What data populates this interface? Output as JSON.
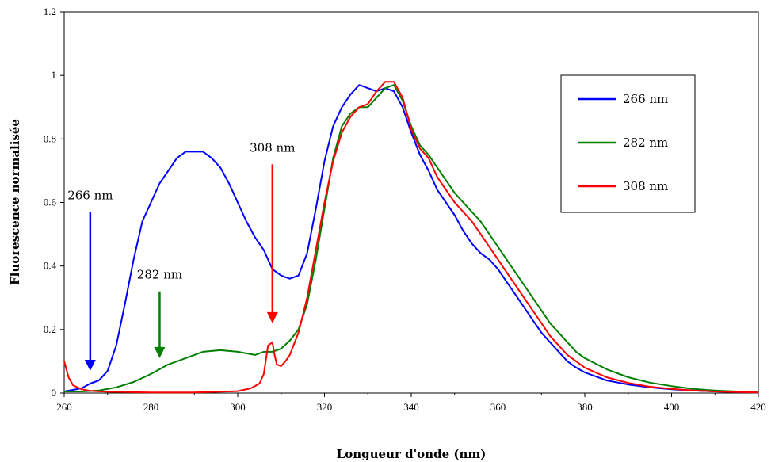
{
  "chart_data": {
    "type": "line",
    "xlabel": "Longueur d'onde (nm)",
    "ylabel": "Fluorescence normalisée",
    "xlim": [
      260,
      420
    ],
    "ylim": [
      0,
      1.2
    ],
    "x_ticks": [
      "260",
      "280",
      "300",
      "320",
      "340",
      "360",
      "380",
      "400",
      "420"
    ],
    "y_ticks": [
      "0",
      "0.2",
      "0.4",
      "0.6",
      "0.8",
      "1",
      "1.2"
    ],
    "grid": false,
    "legend_position": "top-right",
    "series": [
      {
        "name": "266 nm",
        "color": "#0000ff",
        "points": [
          [
            260,
            0.005
          ],
          [
            262,
            0.01
          ],
          [
            264,
            0.015
          ],
          [
            266,
            0.03
          ],
          [
            268,
            0.04
          ],
          [
            270,
            0.07
          ],
          [
            272,
            0.15
          ],
          [
            274,
            0.28
          ],
          [
            276,
            0.42
          ],
          [
            278,
            0.54
          ],
          [
            280,
            0.6
          ],
          [
            282,
            0.66
          ],
          [
            284,
            0.7
          ],
          [
            286,
            0.74
          ],
          [
            288,
            0.76
          ],
          [
            290,
            0.76
          ],
          [
            292,
            0.76
          ],
          [
            294,
            0.74
          ],
          [
            296,
            0.71
          ],
          [
            298,
            0.66
          ],
          [
            300,
            0.6
          ],
          [
            302,
            0.54
          ],
          [
            304,
            0.49
          ],
          [
            306,
            0.45
          ],
          [
            308,
            0.39
          ],
          [
            310,
            0.37
          ],
          [
            312,
            0.36
          ],
          [
            314,
            0.37
          ],
          [
            316,
            0.44
          ],
          [
            318,
            0.58
          ],
          [
            320,
            0.73
          ],
          [
            322,
            0.84
          ],
          [
            324,
            0.9
          ],
          [
            326,
            0.94
          ],
          [
            328,
            0.97
          ],
          [
            330,
            0.96
          ],
          [
            332,
            0.95
          ],
          [
            334,
            0.96
          ],
          [
            336,
            0.95
          ],
          [
            338,
            0.9
          ],
          [
            340,
            0.82
          ],
          [
            342,
            0.75
          ],
          [
            344,
            0.7
          ],
          [
            346,
            0.64
          ],
          [
            348,
            0.6
          ],
          [
            350,
            0.56
          ],
          [
            352,
            0.51
          ],
          [
            354,
            0.47
          ],
          [
            356,
            0.44
          ],
          [
            358,
            0.42
          ],
          [
            360,
            0.39
          ],
          [
            362,
            0.35
          ],
          [
            364,
            0.31
          ],
          [
            366,
            0.27
          ],
          [
            368,
            0.23
          ],
          [
            370,
            0.19
          ],
          [
            372,
            0.16
          ],
          [
            374,
            0.13
          ],
          [
            376,
            0.1
          ],
          [
            378,
            0.08
          ],
          [
            380,
            0.065
          ],
          [
            385,
            0.04
          ],
          [
            390,
            0.027
          ],
          [
            395,
            0.018
          ],
          [
            400,
            0.012
          ],
          [
            405,
            0.008
          ],
          [
            410,
            0.005
          ],
          [
            415,
            0.003
          ],
          [
            420,
            0.002
          ]
        ]
      },
      {
        "name": "282 nm",
        "color": "#008000",
        "points": [
          [
            260,
            0.005
          ],
          [
            264,
            0.005
          ],
          [
            268,
            0.008
          ],
          [
            272,
            0.018
          ],
          [
            276,
            0.035
          ],
          [
            280,
            0.06
          ],
          [
            284,
            0.09
          ],
          [
            288,
            0.11
          ],
          [
            292,
            0.13
          ],
          [
            296,
            0.135
          ],
          [
            300,
            0.13
          ],
          [
            304,
            0.12
          ],
          [
            306,
            0.13
          ],
          [
            308,
            0.13
          ],
          [
            310,
            0.14
          ],
          [
            312,
            0.165
          ],
          [
            314,
            0.2
          ],
          [
            316,
            0.28
          ],
          [
            318,
            0.42
          ],
          [
            320,
            0.58
          ],
          [
            322,
            0.74
          ],
          [
            324,
            0.84
          ],
          [
            326,
            0.88
          ],
          [
            328,
            0.9
          ],
          [
            330,
            0.9
          ],
          [
            332,
            0.93
          ],
          [
            334,
            0.96
          ],
          [
            336,
            0.97
          ],
          [
            338,
            0.92
          ],
          [
            340,
            0.84
          ],
          [
            342,
            0.78
          ],
          [
            344,
            0.75
          ],
          [
            346,
            0.71
          ],
          [
            348,
            0.67
          ],
          [
            350,
            0.63
          ],
          [
            352,
            0.6
          ],
          [
            354,
            0.57
          ],
          [
            356,
            0.54
          ],
          [
            358,
            0.5
          ],
          [
            360,
            0.46
          ],
          [
            362,
            0.42
          ],
          [
            364,
            0.38
          ],
          [
            366,
            0.34
          ],
          [
            368,
            0.3
          ],
          [
            370,
            0.26
          ],
          [
            372,
            0.22
          ],
          [
            374,
            0.19
          ],
          [
            376,
            0.16
          ],
          [
            378,
            0.13
          ],
          [
            380,
            0.11
          ],
          [
            385,
            0.075
          ],
          [
            390,
            0.05
          ],
          [
            395,
            0.033
          ],
          [
            400,
            0.022
          ],
          [
            405,
            0.013
          ],
          [
            410,
            0.008
          ],
          [
            415,
            0.005
          ],
          [
            420,
            0.003
          ]
        ]
      },
      {
        "name": "308 nm",
        "color": "#ff0000",
        "points": [
          [
            260,
            0.1
          ],
          [
            261,
            0.05
          ],
          [
            262,
            0.025
          ],
          [
            264,
            0.012
          ],
          [
            266,
            0.007
          ],
          [
            270,
            0.004
          ],
          [
            280,
            0.002
          ],
          [
            290,
            0.002
          ],
          [
            300,
            0.006
          ],
          [
            303,
            0.015
          ],
          [
            305,
            0.03
          ],
          [
            306,
            0.06
          ],
          [
            307,
            0.15
          ],
          [
            308,
            0.16
          ],
          [
            308.5,
            0.12
          ],
          [
            309,
            0.09
          ],
          [
            310,
            0.085
          ],
          [
            311,
            0.1
          ],
          [
            312,
            0.12
          ],
          [
            314,
            0.19
          ],
          [
            316,
            0.3
          ],
          [
            318,
            0.45
          ],
          [
            320,
            0.6
          ],
          [
            322,
            0.73
          ],
          [
            324,
            0.82
          ],
          [
            326,
            0.87
          ],
          [
            328,
            0.9
          ],
          [
            330,
            0.91
          ],
          [
            332,
            0.95
          ],
          [
            334,
            0.98
          ],
          [
            336,
            0.98
          ],
          [
            338,
            0.93
          ],
          [
            340,
            0.83
          ],
          [
            342,
            0.77
          ],
          [
            344,
            0.74
          ],
          [
            346,
            0.68
          ],
          [
            348,
            0.64
          ],
          [
            350,
            0.6
          ],
          [
            352,
            0.57
          ],
          [
            354,
            0.54
          ],
          [
            356,
            0.5
          ],
          [
            358,
            0.46
          ],
          [
            360,
            0.42
          ],
          [
            362,
            0.38
          ],
          [
            364,
            0.34
          ],
          [
            366,
            0.3
          ],
          [
            368,
            0.26
          ],
          [
            370,
            0.22
          ],
          [
            372,
            0.18
          ],
          [
            374,
            0.15
          ],
          [
            376,
            0.12
          ],
          [
            378,
            0.1
          ],
          [
            380,
            0.08
          ],
          [
            385,
            0.05
          ],
          [
            390,
            0.032
          ],
          [
            395,
            0.02
          ],
          [
            400,
            0.013
          ],
          [
            405,
            0.008
          ],
          [
            410,
            0.005
          ],
          [
            415,
            0.003
          ],
          [
            420,
            0.002
          ]
        ]
      }
    ],
    "annotations": [
      {
        "text": "266 nm",
        "color": "#0000ff",
        "arrow_x": 266,
        "arrow_y_top": 0.57,
        "arrow_y_bottom": 0.07
      },
      {
        "text": "282 nm",
        "color": "#008000",
        "arrow_x": 282,
        "arrow_y_top": 0.32,
        "arrow_y_bottom": 0.11
      },
      {
        "text": "308 nm",
        "color": "#ff0000",
        "arrow_x": 308,
        "arrow_y_top": 0.72,
        "arrow_y_bottom": 0.22
      }
    ]
  }
}
